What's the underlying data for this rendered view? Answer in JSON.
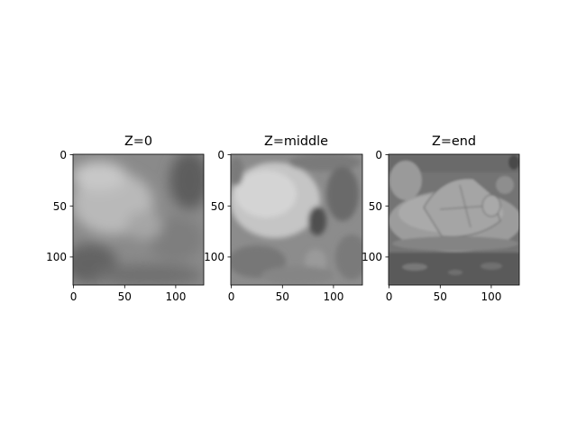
{
  "chart_data": [
    {
      "type": "heatmap",
      "title": "Z=0",
      "xticks": [
        0,
        50,
        100
      ],
      "yticks": [
        0,
        50,
        100
      ],
      "xlim": [
        0,
        127
      ],
      "ylim": [
        127,
        0
      ],
      "colormap": "gray"
    },
    {
      "type": "heatmap",
      "title": "Z=middle",
      "xticks": [
        0,
        50,
        100
      ],
      "yticks": [
        0,
        50,
        100
      ],
      "xlim": [
        0,
        127
      ],
      "ylim": [
        127,
        0
      ],
      "colormap": "gray"
    },
    {
      "type": "heatmap",
      "title": "Z=end",
      "xticks": [
        0,
        50,
        100
      ],
      "yticks": [
        0,
        50,
        100
      ],
      "xlim": [
        0,
        127
      ],
      "ylim": [
        127,
        0
      ],
      "colormap": "gray"
    }
  ]
}
